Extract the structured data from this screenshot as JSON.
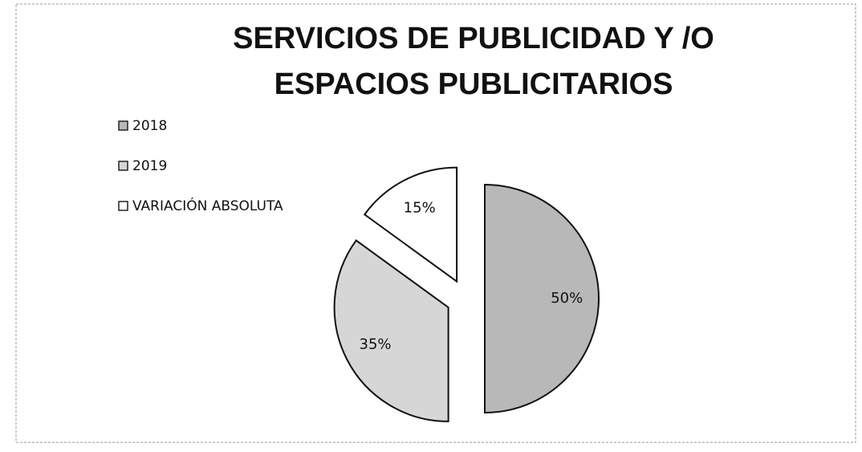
{
  "chart_data": {
    "type": "pie",
    "title": [
      "SERVICIOS DE PUBLICIDAD Y /O",
      "ESPACIOS PUBLICITARIOS"
    ],
    "categories": [
      "2018",
      "2019",
      "VARIACIÓN ABSOLUTA"
    ],
    "values": [
      50,
      35,
      15
    ],
    "value_labels": [
      "50%",
      "35%",
      "15%"
    ],
    "colors": [
      "#b8b8b8",
      "#d6d6d6",
      "#ffffff"
    ],
    "legend": "left"
  }
}
